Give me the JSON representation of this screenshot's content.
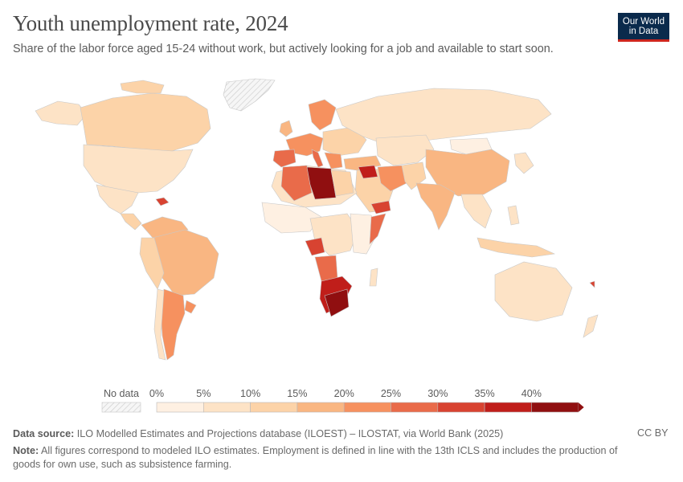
{
  "title": "Youth unemployment rate, 2024",
  "subtitle": "Share of the labor force aged 15-24 without work, but actively looking for a job and available to start soon.",
  "logo": {
    "line1": "Our World",
    "line2": "in Data"
  },
  "legend": {
    "no_data_label": "No data",
    "ticks": [
      "0%",
      "5%",
      "10%",
      "15%",
      "20%",
      "25%",
      "30%",
      "35%",
      "40%"
    ],
    "colors": [
      "#fef0e2",
      "#fde3c6",
      "#fcd3a8",
      "#f9b682",
      "#f6915f",
      "#e96b4a",
      "#d84331",
      "#c01e1a",
      "#900f10"
    ]
  },
  "footer": {
    "source_label": "Data source:",
    "source_text": "ILO Modelled Estimates and Projections database (ILOEST) – ILOSTAT, via World Bank (2025)",
    "note_label": "Note:",
    "note_text": "All figures correspond to modeled ILO estimates. Employment is defined in line with the 13th ICLS and includes the production of goods for own use, such as subsistence farming.",
    "license": "CC BY"
  }
}
